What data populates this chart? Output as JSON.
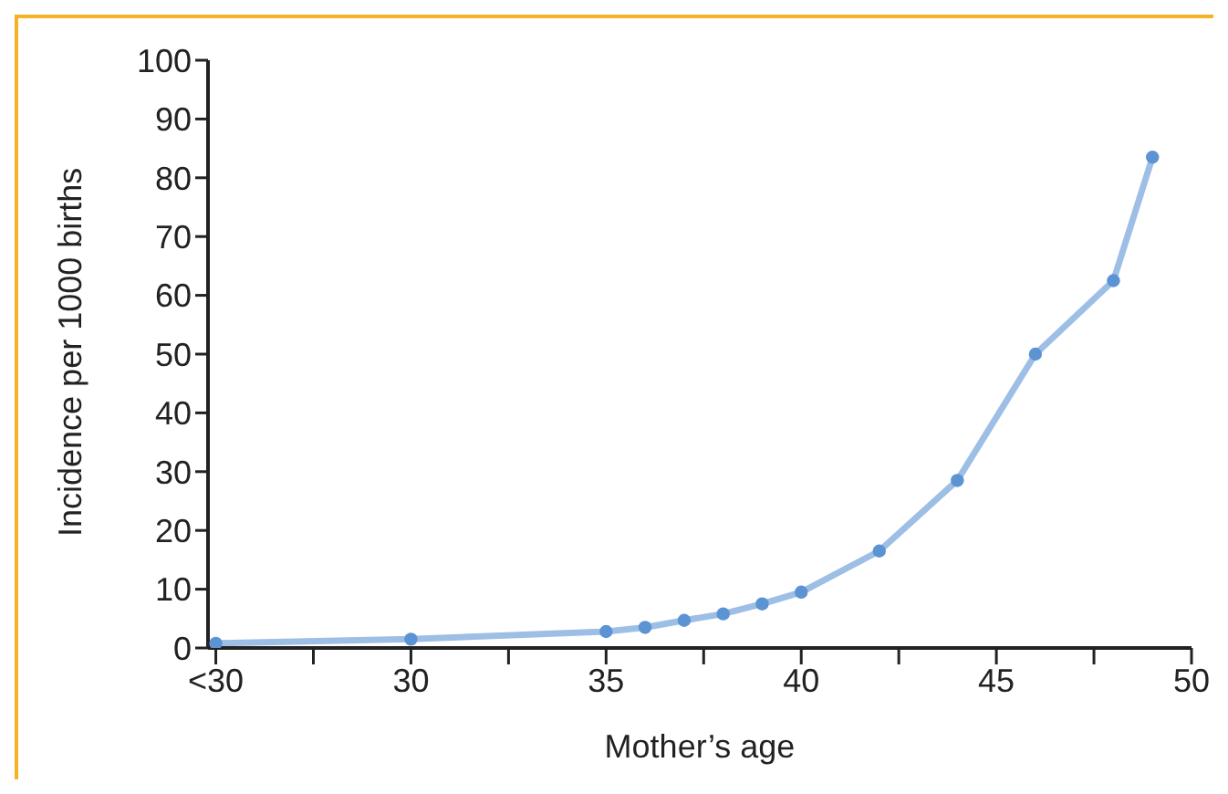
{
  "chart_data": {
    "type": "line",
    "xlabel": "Mother’s age",
    "ylabel": "Incidence per 1000 births",
    "x": [
      25,
      30,
      35,
      36,
      37,
      38,
      39,
      40,
      42,
      44,
      46,
      48,
      49
    ],
    "series": [
      {
        "color": "#5b93d3",
        "values": [
          0.8,
          1.5,
          2.8,
          3.5,
          4.7,
          5.8,
          7.5,
          9.5,
          16.5,
          28.5,
          50,
          62.5,
          83.5
        ]
      }
    ],
    "xlim": [
      24.8,
      50
    ],
    "xticks": [
      {
        "value": 25,
        "label": "<30"
      },
      {
        "value": 27.5,
        "label": null
      },
      30,
      {
        "value": 32.5,
        "label": null
      },
      35,
      {
        "value": 37.5,
        "label": null
      },
      40,
      {
        "value": 42.5,
        "label": null
      },
      45,
      {
        "value": 47.5,
        "label": null
      },
      50
    ],
    "ylim": [
      0,
      100
    ],
    "yticks": [
      0,
      10,
      20,
      30,
      40,
      50,
      60,
      70,
      80,
      90,
      100
    ],
    "marker": "circle",
    "line_style": "solid"
  }
}
